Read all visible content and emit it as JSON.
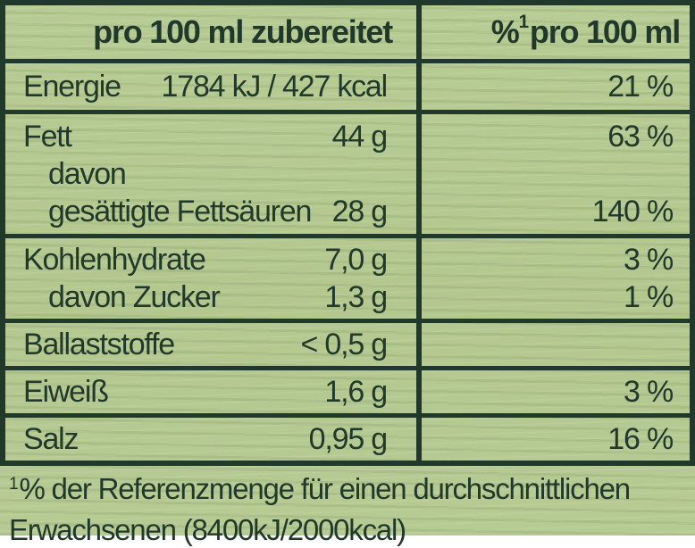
{
  "colors": {
    "background": "#b5c992",
    "ink": "#21392a"
  },
  "table": {
    "header": {
      "col1": "pro 100 ml zubereitet",
      "col2_percent": "%",
      "col2_sup": "1",
      "col2_rest": "pro 100 ml"
    },
    "rows": [
      {
        "name": "energie",
        "lines": [
          {
            "label": "Energie",
            "value": "1784 kJ / 427 kcal",
            "pct": "21 %"
          }
        ]
      },
      {
        "name": "fett",
        "lines": [
          {
            "label": "Fett",
            "value": "44 g",
            "pct": "63 %"
          },
          {
            "label": "davon",
            "value": "",
            "pct": ""
          },
          {
            "label": "gesättigte Fettsäuren",
            "value": "28 g",
            "pct": "140 %"
          }
        ]
      },
      {
        "name": "kohlenhydrate",
        "lines": [
          {
            "label": "Kohlenhydrate",
            "value": "7,0 g",
            "pct": "3 %"
          },
          {
            "label": "davon Zucker",
            "value": "1,3 g",
            "pct": "1 %"
          }
        ]
      },
      {
        "name": "ballaststoffe",
        "lines": [
          {
            "label": "Ballaststoffe",
            "value": "< 0,5 g",
            "pct": ""
          }
        ]
      },
      {
        "name": "eiweiss",
        "lines": [
          {
            "label": "Eiweiß",
            "value": "1,6 g",
            "pct": "3 %"
          }
        ]
      },
      {
        "name": "salz",
        "lines": [
          {
            "label": "Salz",
            "value": "0,95 g",
            "pct": "16 %"
          }
        ]
      }
    ]
  },
  "footnote": {
    "sup": "1",
    "line1": "% der Referenzmenge für einen durchschnittlichen",
    "line2": "Erwachsenen (8400kJ/2000kcal)"
  }
}
